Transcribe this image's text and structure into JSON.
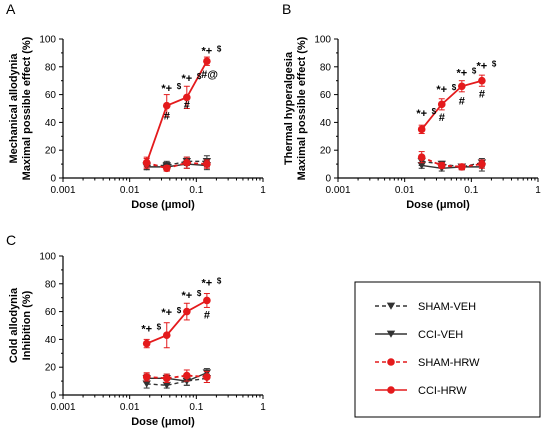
{
  "colors": {
    "sham": "#333333",
    "cci": "#333333",
    "hrw": "#e41a1c",
    "cci_hrw": "#e41a1c"
  },
  "legend": {
    "items": [
      {
        "label": "SHAM-VEH",
        "color": "#333333",
        "dashed": true,
        "marker": "triangle-down"
      },
      {
        "label": "CCI-VEH",
        "color": "#333333",
        "dashed": false,
        "marker": "triangle-down"
      },
      {
        "label": "SHAM-HRW",
        "color": "#e41a1c",
        "dashed": true,
        "marker": "circle"
      },
      {
        "label": "CCI-HRW",
        "color": "#e41a1c",
        "dashed": false,
        "marker": "circle"
      }
    ]
  },
  "chart_data": [
    {
      "type": "line",
      "panel": "A",
      "ylabel_lines": [
        "Mechanical allodynia",
        "Maximal possible effect (%)"
      ],
      "xlabel": "Dose (μmol)",
      "xscale": "log",
      "xlim": [
        0.001,
        1
      ],
      "xticks": [
        "0.001",
        "0.01",
        "0.1",
        "1"
      ],
      "ylim": [
        0,
        100
      ],
      "yticks": [
        "0",
        "20",
        "40",
        "60",
        "80",
        "100"
      ],
      "x": [
        0.018,
        0.036,
        0.072,
        0.144
      ],
      "series": [
        {
          "name": "SHAM-VEH",
          "values": [
            9,
            9,
            12,
            12
          ],
          "err": [
            3,
            3,
            3,
            4
          ]
        },
        {
          "name": "CCI-VEH",
          "values": [
            8,
            8,
            10,
            9
          ],
          "err": [
            2,
            3,
            3,
            3
          ]
        },
        {
          "name": "SHAM-HRW",
          "values": [
            11,
            7,
            11,
            10
          ],
          "err": [
            3,
            2,
            4,
            3
          ]
        },
        {
          "name": "CCI-HRW",
          "values": [
            11,
            52,
            58,
            84
          ],
          "err": [
            4,
            8,
            8,
            3
          ]
        }
      ],
      "annotations": [
        {
          "x": 0.036,
          "y": 62,
          "text": "*+",
          "sup": "$"
        },
        {
          "x": 0.072,
          "y": 69,
          "text": "*+",
          "sup": "$"
        },
        {
          "x": 0.144,
          "y": 89,
          "text": "*+",
          "sup": "$"
        },
        {
          "x": 0.036,
          "y": 42,
          "text": "#",
          "sup": ""
        },
        {
          "x": 0.072,
          "y": 50,
          "text": "#",
          "sup": ""
        },
        {
          "x": 0.158,
          "y": 72,
          "text": "#@",
          "sup": ""
        }
      ]
    },
    {
      "type": "line",
      "panel": "B",
      "ylabel_lines": [
        "Thermal hyperalgesia",
        "Maximal possible effect (%)"
      ],
      "xlabel": "Dose (μmol)",
      "xscale": "log",
      "xlim": [
        0.001,
        1
      ],
      "xticks": [
        "0.001",
        "0.01",
        "0.1",
        "1"
      ],
      "ylim": [
        0,
        100
      ],
      "yticks": [
        "0",
        "20",
        "40",
        "60",
        "80",
        "100"
      ],
      "x": [
        0.018,
        0.036,
        0.072,
        0.144
      ],
      "series": [
        {
          "name": "SHAM-VEH",
          "values": [
            12,
            10,
            8,
            11
          ],
          "err": [
            3,
            2,
            2,
            3
          ]
        },
        {
          "name": "CCI-VEH",
          "values": [
            9,
            7,
            8,
            8
          ],
          "err": [
            2,
            2,
            2,
            3
          ]
        },
        {
          "name": "SHAM-HRW",
          "values": [
            15,
            9,
            8,
            10
          ],
          "err": [
            4,
            2,
            2,
            3
          ]
        },
        {
          "name": "CCI-HRW",
          "values": [
            35,
            53,
            66,
            70
          ],
          "err": [
            3,
            4,
            4,
            4
          ]
        }
      ],
      "annotations": [
        {
          "x": 0.018,
          "y": 44,
          "text": "*+",
          "sup": "$"
        },
        {
          "x": 0.036,
          "y": 61,
          "text": "*+",
          "sup": "$"
        },
        {
          "x": 0.072,
          "y": 73,
          "text": "*+",
          "sup": "$"
        },
        {
          "x": 0.144,
          "y": 78,
          "text": "*+",
          "sup": "$"
        },
        {
          "x": 0.036,
          "y": 41,
          "text": "#",
          "sup": ""
        },
        {
          "x": 0.072,
          "y": 53,
          "text": "#",
          "sup": ""
        },
        {
          "x": 0.144,
          "y": 58,
          "text": "#",
          "sup": ""
        }
      ]
    },
    {
      "type": "line",
      "panel": "C",
      "ylabel_lines": [
        "Cold allodynia",
        "Inhibition (%)"
      ],
      "xlabel": "Dose (μmol)",
      "xscale": "log",
      "xlim": [
        0.001,
        1
      ],
      "xticks": [
        "0.001",
        "0.01",
        "0.1",
        "1"
      ],
      "ylim": [
        0,
        100
      ],
      "yticks": [
        "0",
        "20",
        "40",
        "60",
        "80",
        "100"
      ],
      "x": [
        0.018,
        0.036,
        0.072,
        0.144
      ],
      "series": [
        {
          "name": "SHAM-VEH",
          "values": [
            8,
            7,
            10,
            12
          ],
          "err": [
            3,
            2,
            3,
            3
          ]
        },
        {
          "name": "CCI-VEH",
          "values": [
            12,
            12,
            10,
            16
          ],
          "err": [
            3,
            3,
            3,
            3
          ]
        },
        {
          "name": "SHAM-HRW",
          "values": [
            13,
            12,
            14,
            13
          ],
          "err": [
            3,
            3,
            4,
            4
          ]
        },
        {
          "name": "CCI-HRW",
          "values": [
            37,
            43,
            60,
            68
          ],
          "err": [
            3,
            9,
            6,
            5
          ]
        }
      ],
      "annotations": [
        {
          "x": 0.018,
          "y": 45,
          "text": "*+",
          "sup": "$"
        },
        {
          "x": 0.036,
          "y": 57,
          "text": "*+",
          "sup": "$"
        },
        {
          "x": 0.072,
          "y": 69,
          "text": "*+",
          "sup": "$"
        },
        {
          "x": 0.144,
          "y": 78,
          "text": "*+",
          "sup": "$"
        },
        {
          "x": 0.144,
          "y": 55,
          "text": "#",
          "sup": ""
        }
      ]
    }
  ]
}
